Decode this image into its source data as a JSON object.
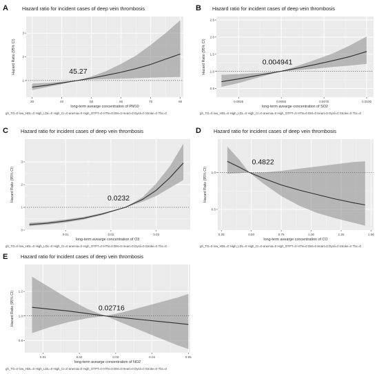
{
  "figure": {
    "footnote": "gh_TG=0 low_HDL=0 High_LDL=0 High_Cr=0 anemia=0 High_OTPT=0 HTN=0 DM=0 Heart=0 Dysli=0 Stroke=0 Tbc=0"
  },
  "chart_data": [
    {
      "panel_label": "A",
      "type": "line",
      "title": "Hazard ratio for incident cases of deep vein thrombosis",
      "xlabel": "long-term avearge concentration of PM10",
      "ylabel": "Hazard Ratio (95% CI)",
      "annotation": "45.27",
      "ref_x": 45.27,
      "xlim": [
        28,
        81
      ],
      "ylim": [
        0.3,
        3.7
      ],
      "xticks": [
        30,
        40,
        50,
        60,
        70,
        80
      ],
      "yticks": [
        1,
        2,
        3
      ],
      "series": [
        {
          "x": [
            30,
            35,
            40,
            45.27,
            50,
            55,
            60,
            65,
            70,
            75,
            80
          ],
          "y": [
            0.72,
            0.8,
            0.9,
            1.0,
            1.1,
            1.22,
            1.35,
            1.5,
            1.68,
            1.9,
            2.12
          ],
          "lower": [
            0.6,
            0.72,
            0.85,
            1.0,
            1.04,
            1.06,
            1.08,
            1.1,
            1.12,
            1.14,
            1.15
          ],
          "upper": [
            0.87,
            0.9,
            0.95,
            1.0,
            1.17,
            1.4,
            1.7,
            2.05,
            2.5,
            3.0,
            3.55
          ]
        }
      ],
      "grid": true
    },
    {
      "panel_label": "B",
      "type": "line",
      "title": "Hazard ratio for incident cases of deep vein thrombosis",
      "xlabel": "long-term avearge concentration of SO2",
      "ylabel": "Hazard Ratio (95% CI)",
      "annotation": "0.004941",
      "ref_x": 0.004941,
      "xlim": [
        0.0012,
        0.0104
      ],
      "ylim": [
        0.25,
        2.6
      ],
      "xticks": [
        0.0025,
        0.005,
        0.0075,
        0.01
      ],
      "xticklabels": [
        "0.0025",
        "0.0050",
        "0.0075",
        "0.0100"
      ],
      "yticks": [
        0.5,
        1.0,
        1.5,
        2.0,
        2.5
      ],
      "yticklabels": [
        "0.5",
        "1.0",
        "1.5",
        "2.0",
        "2.5"
      ],
      "series": [
        {
          "x": [
            0.0015,
            0.0025,
            0.0035,
            0.004941,
            0.006,
            0.007,
            0.008,
            0.009,
            0.01
          ],
          "y": [
            0.7,
            0.78,
            0.87,
            1.0,
            1.1,
            1.2,
            1.31,
            1.43,
            1.58
          ],
          "lower": [
            0.55,
            0.66,
            0.8,
            1.0,
            1.04,
            1.08,
            1.13,
            1.17,
            1.22
          ],
          "upper": [
            0.9,
            0.92,
            0.95,
            1.0,
            1.17,
            1.34,
            1.52,
            1.75,
            2.02
          ]
        }
      ],
      "grid": true
    },
    {
      "panel_label": "C",
      "type": "line",
      "title": "Hazard ratio for incident cases of deep vein thrombosis",
      "xlabel": "long-term avearge concentration of O3",
      "ylabel": "Hazard Ratio (95% CI)",
      "annotation": "0.0232",
      "ref_x": 0.0232,
      "xlim": [
        0.001,
        0.0375
      ],
      "ylim": [
        0,
        4
      ],
      "xticks": [
        0.01,
        0.02,
        0.03
      ],
      "xticklabels": [
        "0.01",
        "0.02",
        "0.03"
      ],
      "yticks": [
        0,
        1,
        2,
        3
      ],
      "series": [
        {
          "x": [
            0.002,
            0.006,
            0.01,
            0.014,
            0.018,
            0.0232,
            0.027,
            0.03,
            0.033,
            0.036
          ],
          "y": [
            0.24,
            0.3,
            0.4,
            0.52,
            0.7,
            1.0,
            1.35,
            1.75,
            2.3,
            2.95
          ],
          "lower": [
            0.17,
            0.24,
            0.33,
            0.46,
            0.66,
            1.0,
            1.25,
            1.5,
            1.85,
            2.2
          ],
          "upper": [
            0.32,
            0.37,
            0.47,
            0.58,
            0.75,
            1.0,
            1.45,
            2.05,
            2.8,
            3.8
          ]
        }
      ],
      "grid": true
    },
    {
      "panel_label": "D",
      "type": "line",
      "title": "Hazard ratio for incident cases of deep vein thrombosis",
      "xlabel": "long-term avearge concentration of CO",
      "ylabel": "Hazard Ratio (95% CI)",
      "annotation": "0.4822",
      "ref_x": 0.4822,
      "xlim": [
        0.22,
        1.52
      ],
      "ylim": [
        0.22,
        1.45
      ],
      "xticks": [
        0.25,
        0.5,
        0.75,
        1.0,
        1.25,
        1.5
      ],
      "xticklabels": [
        "0.25",
        "0.50",
        "0.75",
        "1.00",
        "1.25",
        "1.50"
      ],
      "yticks": [
        0.5,
        1.0
      ],
      "yticklabels": [
        "0.5",
        "1.0"
      ],
      "series": [
        {
          "x": [
            0.3,
            0.4,
            0.4822,
            0.6,
            0.75,
            0.9,
            1.05,
            1.2,
            1.35,
            1.45
          ],
          "y": [
            1.15,
            1.07,
            1.0,
            0.92,
            0.83,
            0.76,
            0.7,
            0.64,
            0.59,
            0.56
          ],
          "lower": [
            0.98,
            0.99,
            1.0,
            0.85,
            0.68,
            0.55,
            0.45,
            0.38,
            0.32,
            0.28
          ],
          "upper": [
            1.35,
            1.17,
            1.0,
            1.0,
            1.02,
            1.05,
            1.08,
            1.11,
            1.14,
            1.15
          ]
        }
      ],
      "grid": true
    },
    {
      "panel_label": "E",
      "type": "line",
      "title": "Hazard ratio for incident cases of deep vein thrombosis",
      "xlabel": "long-term avearge concentration of NO2",
      "ylabel": "Hazard Ratio (95% CI)",
      "annotation": "02716",
      "annotation_prefix": "0.",
      "ref_x": 0.02716,
      "xlim": [
        0.005,
        0.0505
      ],
      "ylim": [
        0.7,
        1.42
      ],
      "xticks": [
        0.01,
        0.02,
        0.03,
        0.04,
        0.05
      ],
      "xticklabels": [
        "0.01",
        "0.02",
        "0.03",
        "0.04",
        "0.05"
      ],
      "yticks": [
        0.8,
        1.0,
        1.2
      ],
      "yticklabels": [
        "0.8",
        "1.0",
        "1.2"
      ],
      "series": [
        {
          "x": [
            0.007,
            0.012,
            0.017,
            0.022,
            0.02716,
            0.032,
            0.037,
            0.042,
            0.047,
            0.05
          ],
          "y": [
            1.07,
            1.055,
            1.04,
            1.02,
            1.0,
            0.985,
            0.97,
            0.955,
            0.94,
            0.93
          ],
          "lower": [
            0.86,
            0.91,
            0.95,
            0.98,
            1.0,
            0.94,
            0.88,
            0.82,
            0.76,
            0.73
          ],
          "upper": [
            1.32,
            1.23,
            1.14,
            1.06,
            1.0,
            1.03,
            1.07,
            1.11,
            1.15,
            1.18
          ]
        }
      ],
      "grid": true
    }
  ]
}
